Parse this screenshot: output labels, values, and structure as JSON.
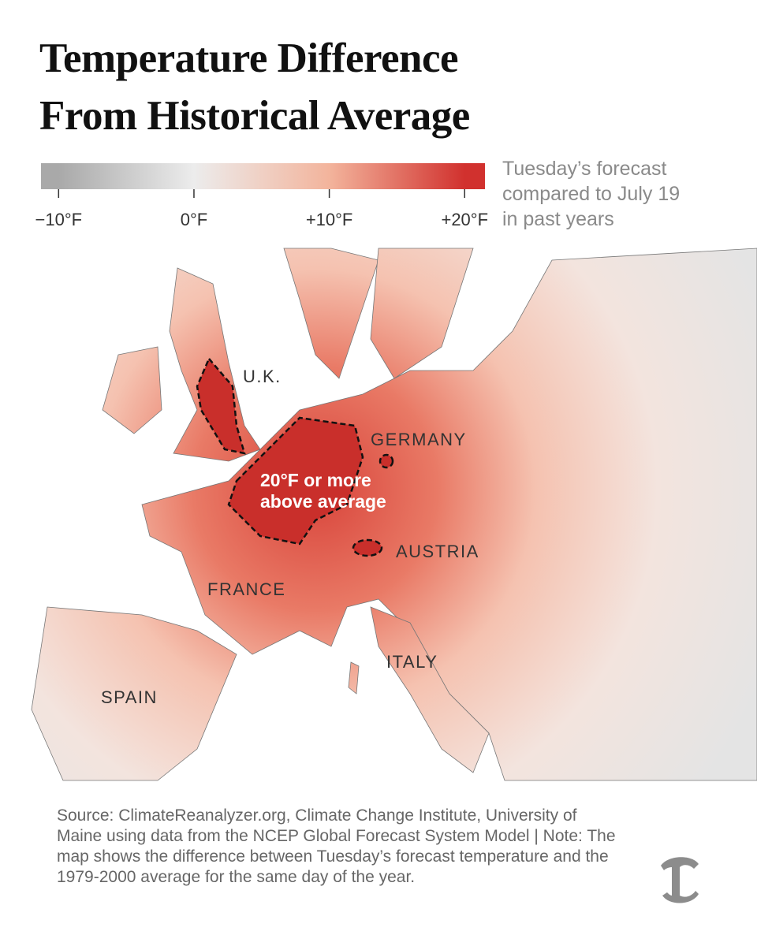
{
  "title": [
    "Temperature Difference",
    "From Historical Average"
  ],
  "legend": {
    "range": [
      -11.3,
      21.5
    ],
    "ticks": [
      {
        "value": -10,
        "label": "−10°F"
      },
      {
        "value": 0,
        "label": "0°F"
      },
      {
        "value": 10,
        "label": "+10°F"
      },
      {
        "value": 20,
        "label": "+20°F"
      }
    ],
    "colors": [
      "#a9a9a9",
      "#ececec",
      "#f3b49c",
      "#d1312e"
    ],
    "caption": [
      "Tuesday’s forecast",
      "compared to July 19",
      "in past years"
    ]
  },
  "map": {
    "labels": [
      "U.K.",
      "GERMANY",
      "AUSTRIA",
      "FRANCE",
      "ITALY",
      "SPAIN"
    ],
    "annotation": [
      "20°F or more",
      "above average"
    ]
  },
  "source": "Source: ClimateReanalyzer.org, Climate Change Institute, University of Maine using data from the NCEP Global Forecast System Model | Note: The map shows the difference between Tuesday’s forecast temperature and the 1979-2000 average for the same day of the year."
}
